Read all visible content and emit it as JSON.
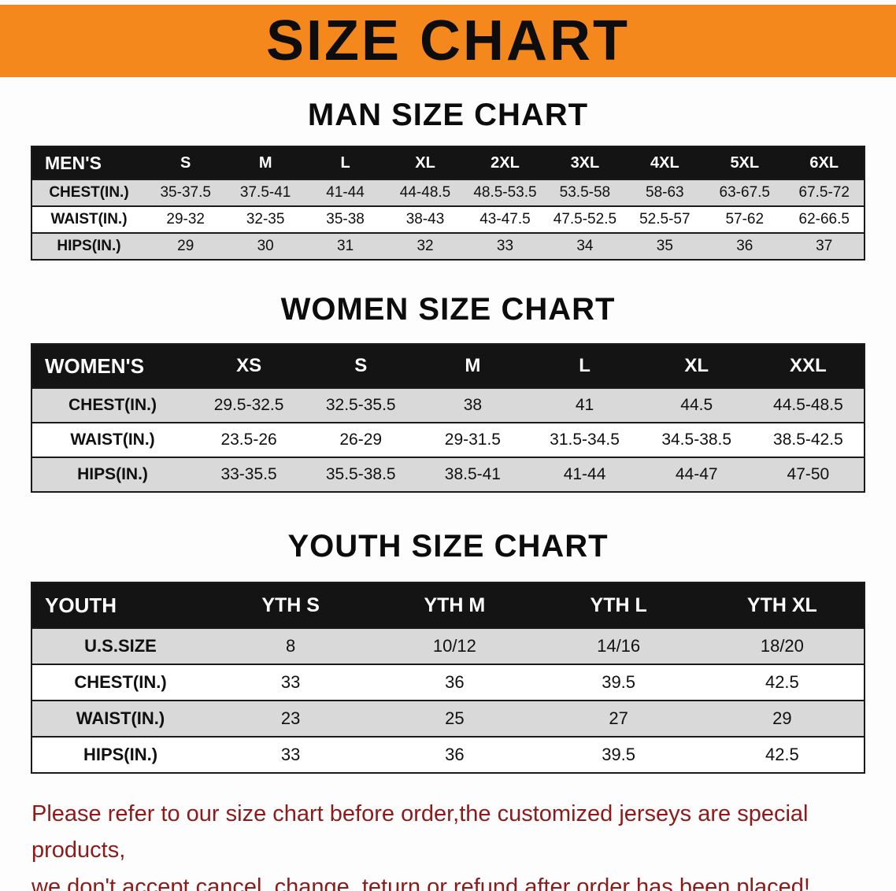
{
  "banner": {
    "title": "SIZE CHART"
  },
  "colors": {
    "banner_bg": "#f5881d",
    "table_header_bg": "#141414",
    "row_shaded": "#d9d9d9",
    "notice_text": "#8e1a1a"
  },
  "men": {
    "heading": "MAN SIZE CHART",
    "header": [
      "MEN'S",
      "S",
      "M",
      "L",
      "XL",
      "2XL",
      "3XL",
      "4XL",
      "5XL",
      "6XL"
    ],
    "rows": [
      [
        "CHEST(IN.)",
        "35-37.5",
        "37.5-41",
        "41-44",
        "44-48.5",
        "48.5-53.5",
        "53.5-58",
        "58-63",
        "63-67.5",
        "67.5-72"
      ],
      [
        "WAIST(IN.)",
        "29-32",
        "32-35",
        "35-38",
        "38-43",
        "43-47.5",
        "47.5-52.5",
        "52.5-57",
        "57-62",
        "62-66.5"
      ],
      [
        "HIPS(IN.)",
        "29",
        "30",
        "31",
        "32",
        "33",
        "34",
        "35",
        "36",
        "37"
      ]
    ]
  },
  "women": {
    "heading": "WOMEN SIZE CHART",
    "header": [
      "WOMEN'S",
      "XS",
      "S",
      "M",
      "L",
      "XL",
      "XXL"
    ],
    "rows": [
      [
        "CHEST(IN.)",
        "29.5-32.5",
        "32.5-35.5",
        "38",
        "41",
        "44.5",
        "44.5-48.5"
      ],
      [
        "WAIST(IN.)",
        "23.5-26",
        "26-29",
        "29-31.5",
        "31.5-34.5",
        "34.5-38.5",
        "38.5-42.5"
      ],
      [
        "HIPS(IN.)",
        "33-35.5",
        "35.5-38.5",
        "38.5-41",
        "41-44",
        "44-47",
        "47-50"
      ]
    ]
  },
  "youth": {
    "heading": "YOUTH SIZE CHART",
    "header": [
      "YOUTH",
      "YTH S",
      "YTH M",
      "YTH L",
      "YTH XL"
    ],
    "rows": [
      [
        "U.S.SIZE",
        "8",
        "10/12",
        "14/16",
        "18/20"
      ],
      [
        "CHEST(IN.)",
        "33",
        "36",
        "39.5",
        "42.5"
      ],
      [
        "WAIST(IN.)",
        "23",
        "25",
        "27",
        "29"
      ],
      [
        "HIPS(IN.)",
        "33",
        "36",
        "39.5",
        "42.5"
      ]
    ]
  },
  "notice": {
    "line1": "Please refer to our size chart before order,the customized jerseys are special products,",
    "line2": "we don't accept cancel, change, teturn or refund after order has been placed!"
  }
}
